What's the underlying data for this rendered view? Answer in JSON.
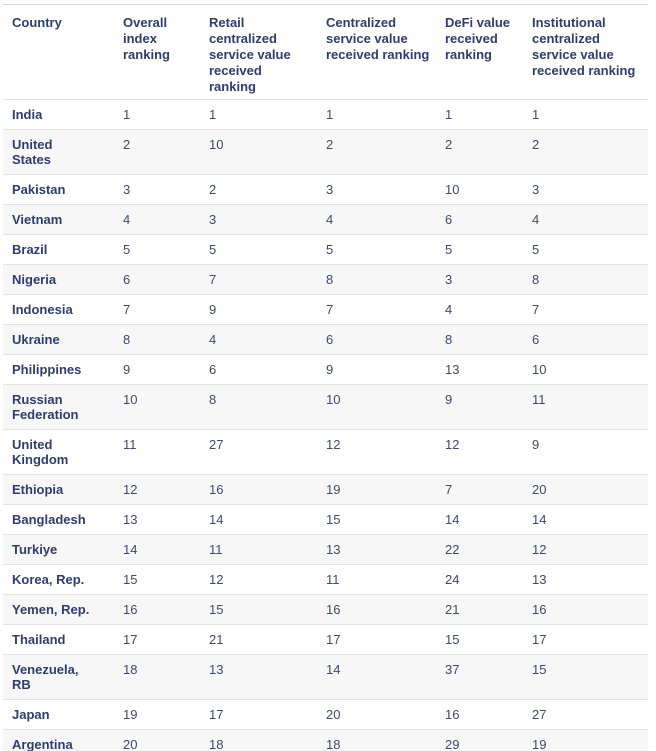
{
  "chart_data": {
    "type": "table",
    "columns": [
      "Country",
      "Overall index ranking",
      "Retail centralized service value received ranking",
      "Centralized service value received ranking",
      "DeFi value received ranking",
      "Institutional centralized service value received ranking"
    ],
    "rows": [
      [
        "India",
        1,
        1,
        1,
        1,
        1
      ],
      [
        "United States",
        2,
        10,
        2,
        2,
        2
      ],
      [
        "Pakistan",
        3,
        2,
        3,
        10,
        3
      ],
      [
        "Vietnam",
        4,
        3,
        4,
        6,
        4
      ],
      [
        "Brazil",
        5,
        5,
        5,
        5,
        5
      ],
      [
        "Nigeria",
        6,
        7,
        8,
        3,
        8
      ],
      [
        "Indonesia",
        7,
        9,
        7,
        4,
        7
      ],
      [
        "Ukraine",
        8,
        4,
        6,
        8,
        6
      ],
      [
        "Philippines",
        9,
        6,
        9,
        13,
        10
      ],
      [
        "Russian Federation",
        10,
        8,
        10,
        9,
        11
      ],
      [
        "United Kingdom",
        11,
        27,
        12,
        12,
        9
      ],
      [
        "Ethiopia",
        12,
        16,
        19,
        7,
        20
      ],
      [
        "Bangladesh",
        13,
        14,
        15,
        14,
        14
      ],
      [
        "Turkiye",
        14,
        11,
        13,
        22,
        12
      ],
      [
        "Korea, Rep.",
        15,
        12,
        11,
        24,
        13
      ],
      [
        "Yemen, Rep.",
        16,
        15,
        16,
        21,
        16
      ],
      [
        "Thailand",
        17,
        21,
        17,
        15,
        17
      ],
      [
        "Venezuela, RB",
        18,
        13,
        14,
        37,
        15
      ],
      [
        "Japan",
        19,
        17,
        20,
        16,
        27
      ],
      [
        "Argentina",
        20,
        18,
        18,
        29,
        19
      ]
    ]
  },
  "colors": {
    "header_text": "#2e3d6b",
    "country_text": "#2e3d6b",
    "value_text": "#3e4a6b",
    "alt_row_background": "#f7f7f8",
    "row_border": "#e3e3e6",
    "table_top_border": "#d6d6d9",
    "page_background": "#ffffff"
  }
}
